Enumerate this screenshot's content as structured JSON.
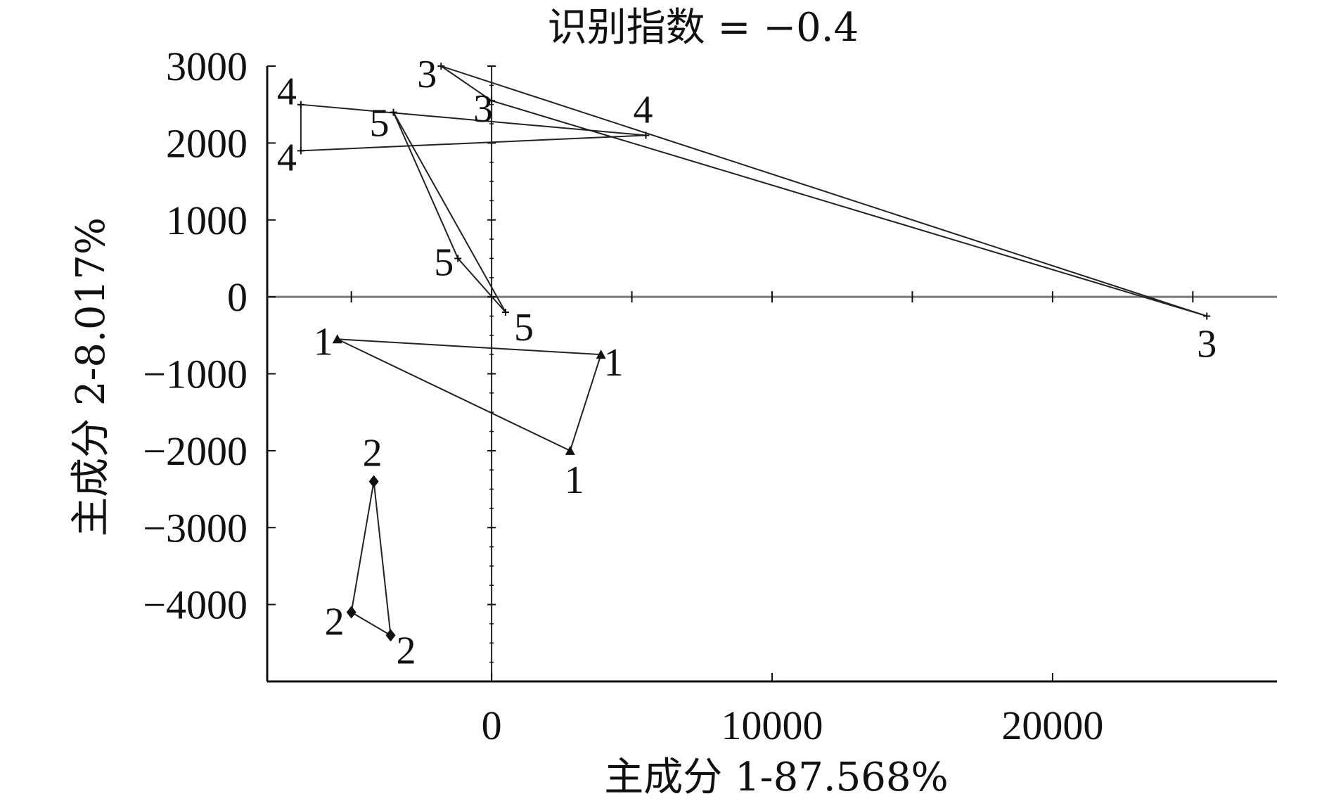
{
  "chart_data": {
    "type": "scatter",
    "title": "识别指数 = −0.4",
    "xlabel": "主成分 1-87.568%",
    "ylabel": "主成分 2-8.017%",
    "xlim": [
      -8000,
      28000
    ],
    "ylim": [
      -5000,
      3000
    ],
    "x_ticks": [
      {
        "value": 0,
        "label": "0"
      },
      {
        "value": 10000,
        "label": "10000"
      },
      {
        "value": 20000,
        "label": "20000"
      }
    ],
    "y_ticks": [
      {
        "value": 3000,
        "label": "3000"
      },
      {
        "value": 2000,
        "label": "2000"
      },
      {
        "value": 1000,
        "label": "1000"
      },
      {
        "value": 0,
        "label": "0"
      },
      {
        "value": -1000,
        "label": "−1000"
      },
      {
        "value": -2000,
        "label": "−2000"
      },
      {
        "value": -3000,
        "label": "−3000"
      },
      {
        "value": -4000,
        "label": "−4000"
      }
    ],
    "groups": [
      {
        "label": "1",
        "color": "#222222",
        "marker": "triangle",
        "points": [
          {
            "x": -5500,
            "y": -550
          },
          {
            "x": 3900,
            "y": -750
          },
          {
            "x": 2800,
            "y": -2000
          }
        ]
      },
      {
        "label": "2",
        "color": "#222222",
        "marker": "diamond",
        "points": [
          {
            "x": -4200,
            "y": -2400
          },
          {
            "x": -5000,
            "y": -4100
          },
          {
            "x": -3600,
            "y": -4400
          }
        ]
      },
      {
        "label": "3",
        "color": "#222222",
        "marker": "cross",
        "points": [
          {
            "x": -1800,
            "y": 3000
          },
          {
            "x": 25500,
            "y": -250
          },
          {
            "x": 0,
            "y": 2550
          }
        ]
      },
      {
        "label": "4",
        "color": "#222222",
        "marker": "cross",
        "points": [
          {
            "x": -6800,
            "y": 2500
          },
          {
            "x": 5500,
            "y": 2100
          },
          {
            "x": -6800,
            "y": 1900
          }
        ]
      },
      {
        "label": "5",
        "color": "#222222",
        "marker": "cross",
        "points": [
          {
            "x": -3500,
            "y": 2400
          },
          {
            "x": -1200,
            "y": 500
          },
          {
            "x": 500,
            "y": -200
          }
        ]
      }
    ],
    "grid": false,
    "legend": "none"
  }
}
